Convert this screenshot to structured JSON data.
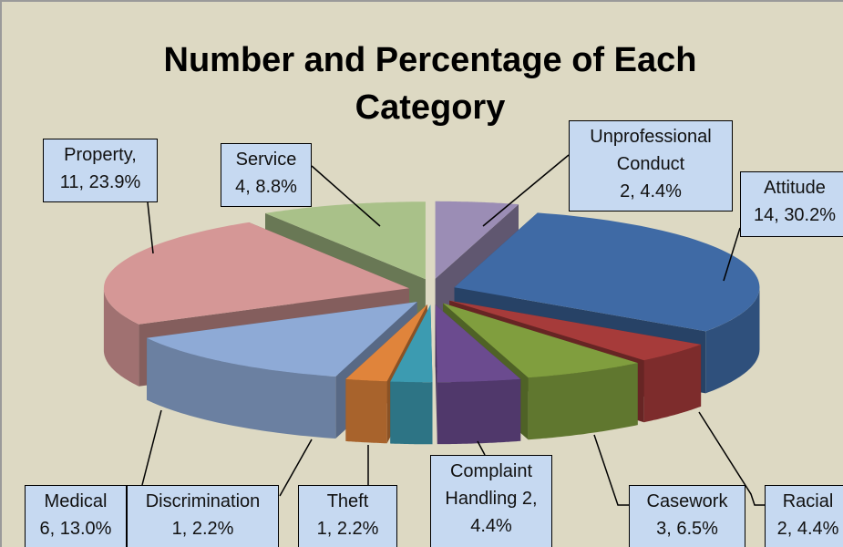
{
  "chart_data": {
    "type": "pie3d",
    "title": "Number and Percentage of Each Category",
    "categories": [
      "Unprofessional Conduct",
      "Attitude",
      "Racial",
      "Casework",
      "Complaint Handling",
      "Theft",
      "Discrimination",
      "Medical",
      "Property",
      "Service"
    ],
    "values": [
      4.4,
      30.2,
      4.4,
      6.5,
      4.4,
      2.2,
      2.2,
      13.0,
      23.9,
      8.8
    ],
    "counts": [
      2,
      14,
      2,
      3,
      2,
      1,
      1,
      6,
      11,
      4
    ],
    "value_labels": [
      "Unprofessional\nConduct\n2, 4.4%",
      "Attitude\n14, 30.2%",
      "Racial\n2, 4.4%",
      "Casework\n3, 6.5%",
      "Complaint\nHandling 2,\n4.4%",
      "Theft\n1, 2.2%",
      "Discrimination\n1, 2.2%",
      "Medical\n6, 13.0%",
      "Property,\n11, 23.9%",
      "Service\n4, 8.8%"
    ],
    "colors": [
      "#9b8db5",
      "#3f6aa5",
      "#a63b3a",
      "#809e3e",
      "#6b4b8f",
      "#3c9bb1",
      "#e0843b",
      "#8eaad6",
      "#d59796",
      "#a9c189"
    ]
  }
}
